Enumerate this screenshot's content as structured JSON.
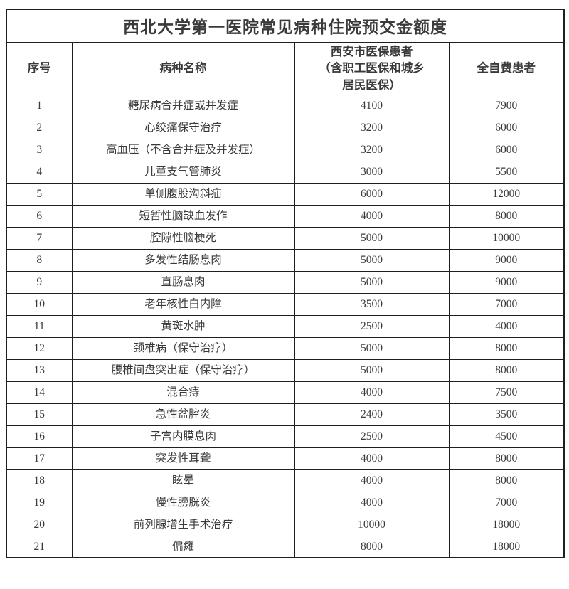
{
  "page": {
    "background_color": "#ffffff",
    "text_color": "#3a3a3a",
    "border_color": "#1f1f1f"
  },
  "table": {
    "title": "西北大学第一医院常见病种住院预交金额度",
    "columns": [
      {
        "key": "no",
        "label": "序号"
      },
      {
        "key": "name",
        "label": "病种名称"
      },
      {
        "key": "insured",
        "label": "西安市医保患者\n（含职工医保和城乡\n居民医保）"
      },
      {
        "key": "self_pay",
        "label": "全自费患者"
      }
    ],
    "rows": [
      {
        "no": "1",
        "name": "糖尿病合并症或并发症",
        "insured": "4100",
        "self_pay": "7900"
      },
      {
        "no": "2",
        "name": "心绞痛保守治疗",
        "insured": "3200",
        "self_pay": "6000"
      },
      {
        "no": "3",
        "name": "高血压（不含合并症及并发症）",
        "insured": "3200",
        "self_pay": "6000"
      },
      {
        "no": "4",
        "name": "儿童支气管肺炎",
        "insured": "3000",
        "self_pay": "5500"
      },
      {
        "no": "5",
        "name": "单侧腹股沟斜疝",
        "insured": "6000",
        "self_pay": "12000"
      },
      {
        "no": "6",
        "name": "短暂性脑缺血发作",
        "insured": "4000",
        "self_pay": "8000"
      },
      {
        "no": "7",
        "name": "腔隙性脑梗死",
        "insured": "5000",
        "self_pay": "10000"
      },
      {
        "no": "8",
        "name": "多发性结肠息肉",
        "insured": "5000",
        "self_pay": "9000"
      },
      {
        "no": "9",
        "name": "直肠息肉",
        "insured": "5000",
        "self_pay": "9000"
      },
      {
        "no": "10",
        "name": "老年核性白内障",
        "insured": "3500",
        "self_pay": "7000"
      },
      {
        "no": "11",
        "name": "黄斑水肿",
        "insured": "2500",
        "self_pay": "4000"
      },
      {
        "no": "12",
        "name": "颈椎病（保守治疗）",
        "insured": "5000",
        "self_pay": "8000"
      },
      {
        "no": "13",
        "name": "腰椎间盘突出症（保守治疗）",
        "insured": "5000",
        "self_pay": "8000"
      },
      {
        "no": "14",
        "name": "混合痔",
        "insured": "4000",
        "self_pay": "7500"
      },
      {
        "no": "15",
        "name": "急性盆腔炎",
        "insured": "2400",
        "self_pay": "3500"
      },
      {
        "no": "16",
        "name": "子宫内膜息肉",
        "insured": "2500",
        "self_pay": "4500"
      },
      {
        "no": "17",
        "name": "突发性耳聋",
        "insured": "4000",
        "self_pay": "8000"
      },
      {
        "no": "18",
        "name": "眩晕",
        "insured": "4000",
        "self_pay": "8000"
      },
      {
        "no": "19",
        "name": "慢性膀胱炎",
        "insured": "4000",
        "self_pay": "7000"
      },
      {
        "no": "20",
        "name": "前列腺增生手术治疗",
        "insured": "10000",
        "self_pay": "18000"
      },
      {
        "no": "21",
        "name": "偏瘫",
        "insured": "8000",
        "self_pay": "18000"
      }
    ]
  }
}
